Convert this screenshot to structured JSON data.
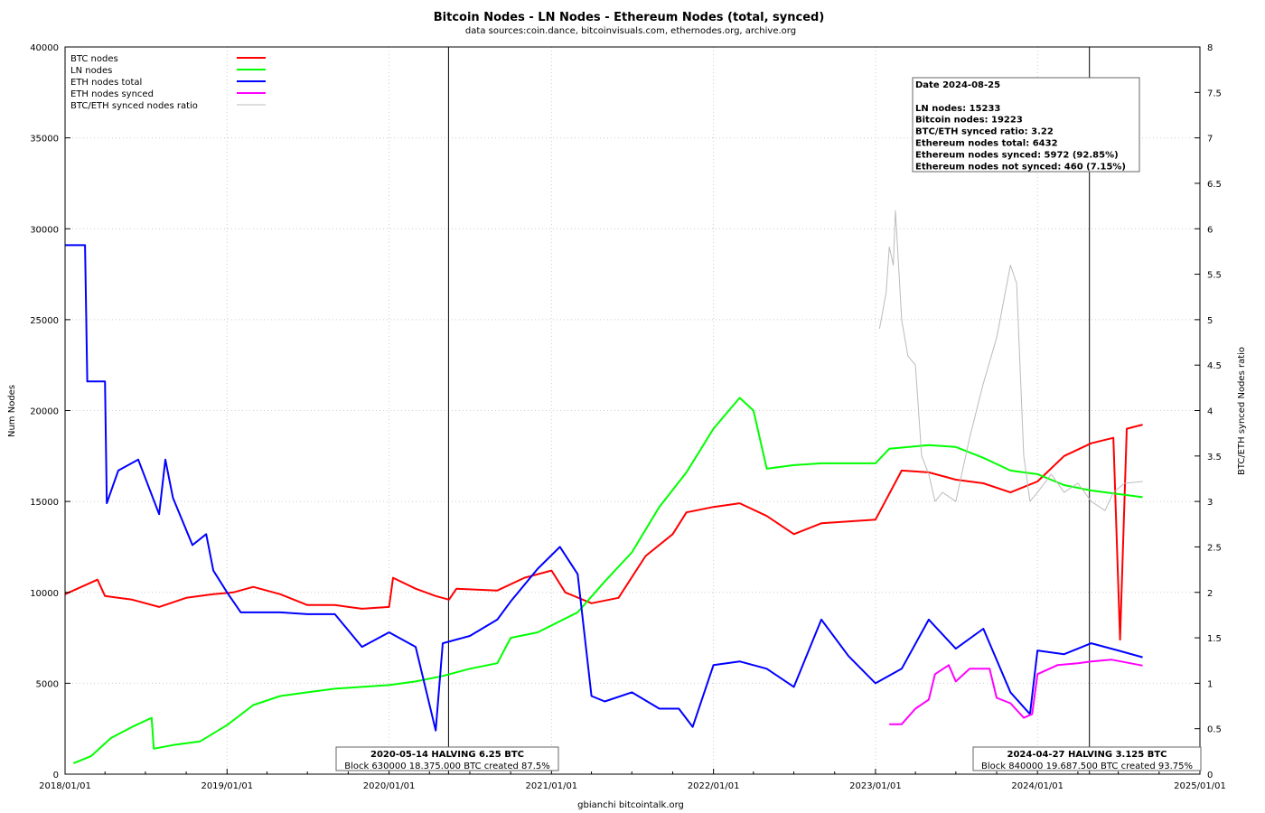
{
  "chart_data": {
    "type": "line",
    "title": "Bitcoin Nodes - LN Nodes - Ethereum Nodes (total, synced)",
    "subtitle": "data sources:coin.dance, bitcoinvisuals.com, ethernodes.org, archive.org",
    "xlabel": "gbianchi bitcointalk.org",
    "ylabel": "Num Nodes",
    "y2label": "BTC/ETH synced Nodes ratio",
    "xlim": [
      "2018-01-01",
      "2025-01-01"
    ],
    "ylim": [
      0,
      40000
    ],
    "y2lim": [
      0,
      8
    ],
    "grid": true,
    "legend_position": "top-left",
    "x_ticks": [
      "2018/01/01",
      "2019/01/01",
      "2020/01/01",
      "2021/01/01",
      "2022/01/01",
      "2023/01/01",
      "2024/01/01",
      "2025/01/01"
    ],
    "y_ticks": [
      "0",
      "5000",
      "10000",
      "15000",
      "20000",
      "25000",
      "30000",
      "35000",
      "40000"
    ],
    "y2_ticks": [
      "0",
      "0.5",
      "1",
      "1.5",
      "2",
      "2.5",
      "3",
      "3.5",
      "4",
      "4.5",
      "5",
      "5.5",
      "6",
      "6.5",
      "7",
      "7.5",
      "8"
    ],
    "series": [
      {
        "name": "BTC nodes",
        "axis": "y1",
        "color": "#ff0000",
        "points": [
          [
            "2018-01-01",
            9900
          ],
          [
            "2018-03-15",
            10700
          ],
          [
            "2018-04-01",
            9800
          ],
          [
            "2018-06-01",
            9600
          ],
          [
            "2018-08-01",
            9200
          ],
          [
            "2018-10-01",
            9700
          ],
          [
            "2018-12-01",
            9900
          ],
          [
            "2019-01-15",
            10000
          ],
          [
            "2019-03-01",
            10300
          ],
          [
            "2019-05-01",
            9900
          ],
          [
            "2019-07-01",
            9300
          ],
          [
            "2019-09-01",
            9300
          ],
          [
            "2019-11-01",
            9100
          ],
          [
            "2020-01-01",
            9200
          ],
          [
            "2020-01-10",
            10800
          ],
          [
            "2020-03-01",
            10200
          ],
          [
            "2020-04-15",
            9800
          ],
          [
            "2020-05-15",
            9600
          ],
          [
            "2020-06-01",
            10200
          ],
          [
            "2020-09-01",
            10100
          ],
          [
            "2020-11-01",
            10800
          ],
          [
            "2021-01-01",
            11200
          ],
          [
            "2021-02-01",
            10000
          ],
          [
            "2021-04-01",
            9400
          ],
          [
            "2021-06-01",
            9700
          ],
          [
            "2021-08-01",
            12000
          ],
          [
            "2021-10-01",
            13200
          ],
          [
            "2021-11-01",
            14400
          ],
          [
            "2022-01-01",
            14700
          ],
          [
            "2022-03-01",
            14900
          ],
          [
            "2022-05-01",
            14200
          ],
          [
            "2022-07-01",
            13200
          ],
          [
            "2022-09-01",
            13800
          ],
          [
            "2022-11-01",
            13900
          ],
          [
            "2023-01-01",
            14000
          ],
          [
            "2023-03-01",
            16700
          ],
          [
            "2023-05-01",
            16600
          ],
          [
            "2023-07-01",
            16200
          ],
          [
            "2023-09-01",
            16000
          ],
          [
            "2023-11-01",
            15500
          ],
          [
            "2024-01-01",
            16100
          ],
          [
            "2024-03-01",
            17500
          ],
          [
            "2024-05-01",
            18200
          ],
          [
            "2024-06-20",
            18500
          ],
          [
            "2024-07-05",
            7400
          ],
          [
            "2024-07-20",
            19000
          ],
          [
            "2024-08-25",
            19223
          ]
        ]
      },
      {
        "name": "LN nodes",
        "axis": "y1",
        "color": "#00ff00",
        "points": [
          [
            "2018-01-20",
            600
          ],
          [
            "2018-03-01",
            1000
          ],
          [
            "2018-04-15",
            2000
          ],
          [
            "2018-06-01",
            2600
          ],
          [
            "2018-07-15",
            3100
          ],
          [
            "2018-07-20",
            1400
          ],
          [
            "2018-09-01",
            1600
          ],
          [
            "2018-11-01",
            1800
          ],
          [
            "2019-01-01",
            2700
          ],
          [
            "2019-03-01",
            3800
          ],
          [
            "2019-05-01",
            4300
          ],
          [
            "2019-07-01",
            4500
          ],
          [
            "2019-09-01",
            4700
          ],
          [
            "2019-11-01",
            4800
          ],
          [
            "2020-01-01",
            4900
          ],
          [
            "2020-03-01",
            5100
          ],
          [
            "2020-05-01",
            5400
          ],
          [
            "2020-07-01",
            5800
          ],
          [
            "2020-09-01",
            6100
          ],
          [
            "2020-10-01",
            7500
          ],
          [
            "2020-12-01",
            7800
          ],
          [
            "2021-03-01",
            8900
          ],
          [
            "2021-05-01",
            10600
          ],
          [
            "2021-07-01",
            12200
          ],
          [
            "2021-09-01",
            14700
          ],
          [
            "2021-11-01",
            16600
          ],
          [
            "2022-01-01",
            19000
          ],
          [
            "2022-03-01",
            20700
          ],
          [
            "2022-04-01",
            20000
          ],
          [
            "2022-05-01",
            16800
          ],
          [
            "2022-07-01",
            17000
          ],
          [
            "2022-09-01",
            17100
          ],
          [
            "2022-11-01",
            17100
          ],
          [
            "2023-01-01",
            17100
          ],
          [
            "2023-02-01",
            17900
          ],
          [
            "2023-05-01",
            18100
          ],
          [
            "2023-07-01",
            18000
          ],
          [
            "2023-09-01",
            17400
          ],
          [
            "2023-11-01",
            16700
          ],
          [
            "2024-01-01",
            16500
          ],
          [
            "2024-03-01",
            15900
          ],
          [
            "2024-05-01",
            15600
          ],
          [
            "2024-08-25",
            15233
          ]
        ]
      },
      {
        "name": "ETH nodes total",
        "axis": "y1",
        "color": "#0000ff",
        "points": [
          [
            "2018-01-01",
            29100
          ],
          [
            "2018-02-15",
            29100
          ],
          [
            "2018-02-20",
            21600
          ],
          [
            "2018-04-01",
            21600
          ],
          [
            "2018-04-05",
            14900
          ],
          [
            "2018-05-01",
            16700
          ],
          [
            "2018-06-15",
            17300
          ],
          [
            "2018-08-01",
            14300
          ],
          [
            "2018-08-15",
            17300
          ],
          [
            "2018-09-01",
            15200
          ],
          [
            "2018-10-15",
            12600
          ],
          [
            "2018-11-15",
            13200
          ],
          [
            "2018-12-01",
            11200
          ],
          [
            "2019-01-01",
            10000
          ],
          [
            "2019-02-01",
            8900
          ],
          [
            "2019-05-01",
            8900
          ],
          [
            "2019-07-01",
            8800
          ],
          [
            "2019-09-01",
            8800
          ],
          [
            "2019-11-01",
            7000
          ],
          [
            "2020-01-01",
            7800
          ],
          [
            "2020-03-01",
            7000
          ],
          [
            "2020-04-15",
            2400
          ],
          [
            "2020-05-01",
            7200
          ],
          [
            "2020-07-01",
            7600
          ],
          [
            "2020-09-01",
            8500
          ],
          [
            "2020-10-01",
            9500
          ],
          [
            "2020-12-01",
            11300
          ],
          [
            "2021-01-20",
            12500
          ],
          [
            "2021-03-01",
            11000
          ],
          [
            "2021-04-01",
            4300
          ],
          [
            "2021-05-01",
            4000
          ],
          [
            "2021-07-01",
            4500
          ],
          [
            "2021-09-01",
            3600
          ],
          [
            "2021-10-15",
            3600
          ],
          [
            "2021-11-15",
            2600
          ],
          [
            "2022-01-01",
            6000
          ],
          [
            "2022-03-01",
            6200
          ],
          [
            "2022-05-01",
            5800
          ],
          [
            "2022-07-01",
            4800
          ],
          [
            "2022-09-01",
            8500
          ],
          [
            "2022-11-01",
            6500
          ],
          [
            "2023-01-01",
            5000
          ],
          [
            "2023-03-01",
            5800
          ],
          [
            "2023-05-01",
            8500
          ],
          [
            "2023-07-01",
            6900
          ],
          [
            "2023-09-01",
            8000
          ],
          [
            "2023-11-01",
            4500
          ],
          [
            "2023-12-15",
            3300
          ],
          [
            "2024-01-01",
            6800
          ],
          [
            "2024-03-01",
            6600
          ],
          [
            "2024-05-01",
            7200
          ],
          [
            "2024-07-01",
            6800
          ],
          [
            "2024-08-25",
            6432
          ]
        ]
      },
      {
        "name": "ETH nodes synced",
        "axis": "y1",
        "color": "#ff00ff",
        "points": [
          [
            "2023-02-01",
            2750
          ],
          [
            "2023-03-01",
            2750
          ],
          [
            "2023-04-01",
            3600
          ],
          [
            "2023-05-01",
            4100
          ],
          [
            "2023-05-15",
            5500
          ],
          [
            "2023-06-15",
            6000
          ],
          [
            "2023-07-01",
            5100
          ],
          [
            "2023-08-01",
            5800
          ],
          [
            "2023-09-15",
            5800
          ],
          [
            "2023-10-01",
            4200
          ],
          [
            "2023-11-01",
            3900
          ],
          [
            "2023-12-01",
            3100
          ],
          [
            "2023-12-20",
            3300
          ],
          [
            "2024-01-01",
            5500
          ],
          [
            "2024-02-15",
            6000
          ],
          [
            "2024-04-01",
            6100
          ],
          [
            "2024-05-01",
            6200
          ],
          [
            "2024-06-15",
            6300
          ],
          [
            "2024-08-25",
            5972
          ]
        ]
      },
      {
        "name": "BTC/ETH synced nodes ratio",
        "axis": "y2",
        "color": "#bbbbbb",
        "points": [
          [
            "2023-01-10",
            4.9
          ],
          [
            "2023-01-25",
            5.3
          ],
          [
            "2023-02-01",
            5.8
          ],
          [
            "2023-02-10",
            5.6
          ],
          [
            "2023-02-15",
            6.2
          ],
          [
            "2023-03-01",
            5.0
          ],
          [
            "2023-03-15",
            4.6
          ],
          [
            "2023-04-01",
            4.5
          ],
          [
            "2023-04-15",
            3.5
          ],
          [
            "2023-05-01",
            3.3
          ],
          [
            "2023-05-15",
            3.0
          ],
          [
            "2023-06-01",
            3.1
          ],
          [
            "2023-07-01",
            3.0
          ],
          [
            "2023-08-01",
            3.7
          ],
          [
            "2023-09-01",
            4.3
          ],
          [
            "2023-10-01",
            4.8
          ],
          [
            "2023-11-01",
            5.6
          ],
          [
            "2023-11-15",
            5.4
          ],
          [
            "2023-12-01",
            3.5
          ],
          [
            "2023-12-15",
            3.0
          ],
          [
            "2024-01-01",
            3.1
          ],
          [
            "2024-02-01",
            3.3
          ],
          [
            "2024-03-01",
            3.1
          ],
          [
            "2024-04-01",
            3.2
          ],
          [
            "2024-05-01",
            3.0
          ],
          [
            "2024-06-01",
            2.9
          ],
          [
            "2024-06-20",
            3.1
          ],
          [
            "2024-07-15",
            3.2
          ],
          [
            "2024-08-25",
            3.22
          ]
        ]
      }
    ],
    "vertical_lines": [
      "2020-05-14",
      "2024-04-27"
    ],
    "annotations": {
      "halving1": {
        "date": "2020-05-14",
        "title": "2020-05-14 HALVING 6.25 BTC",
        "sub": "Block 630000 18.375.000 BTC created 87.5%"
      },
      "halving2": {
        "date": "2024-04-27",
        "title": "2024-04-27 HALVING 3.125 BTC",
        "sub": "Block 840000 19.687.500 BTC created 93.75%"
      }
    },
    "info_box": {
      "position": "top-right",
      "lines": [
        "Date 2024-08-25",
        "",
        "LN nodes: 15233",
        "Bitcoin nodes: 19223",
        "BTC/ETH synced ratio: 3.22",
        "Ethereum nodes total: 6432",
        "Ethereum nodes synced: 5972 (92.85%)",
        "Ethereum nodes not synced: 460 (7.15%)"
      ]
    }
  }
}
